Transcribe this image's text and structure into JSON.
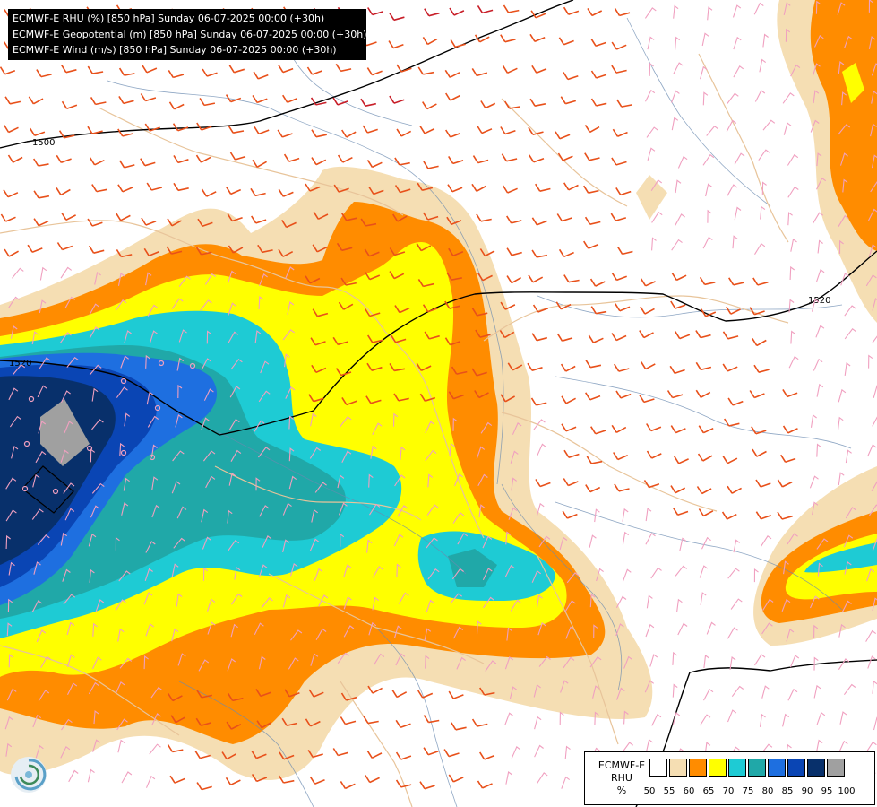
{
  "title": {
    "line1": "ECMWF-E RHU (%) [850 hPa] Sunday 06-07-2025 00:00 (+30h)",
    "line2": "ECMWF-E Geopotential (m) [850 hPa] Sunday 06-07-2025 00:00 (+30h)",
    "line3": "ECMWF-E Wind (m/s) [850 hPa] Sunday 06-07-2025 00:00 (+30h)"
  },
  "contours": {
    "label_1500": "1500",
    "label_1520_east": "1520",
    "label_1520_west": "1520"
  },
  "legend": {
    "model": "ECMWF-E",
    "variable": "RHU",
    "unit": "%",
    "ticks": [
      "50",
      "55",
      "60",
      "65",
      "70",
      "75",
      "80",
      "85",
      "90",
      "95",
      "100"
    ],
    "colors": [
      "#ffffff",
      "#f5deb3",
      "#ff8c00",
      "#ffff00",
      "#1ecbd4",
      "#20a8a8",
      "#1e6fe0",
      "#0a45b4",
      "#08306b",
      "#a0a0a0",
      "#606060"
    ]
  },
  "colors": {
    "wind_strong": "#e8501a",
    "wind_very_strong": "#c81e28",
    "wind_light": "#f0a0c0",
    "border": "#e8c49a",
    "river": "#6a8ab0",
    "contour": "#000000"
  },
  "logo": {
    "name": "ecmwf-logo-icon"
  }
}
